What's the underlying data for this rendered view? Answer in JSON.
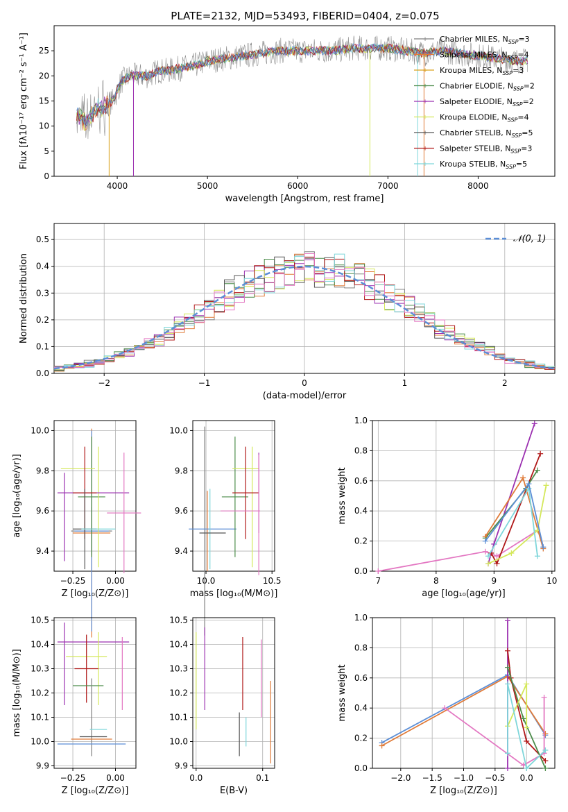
{
  "figure_title": "PLATE=2132, MJD=53493, FIBERID=0404, z=0.075",
  "colors": [
    "#7f7f7f",
    "#e07b39",
    "#d9a01a",
    "#4c8c4a",
    "#9b30b0",
    "#d4e85a",
    "#555555",
    "#b01818",
    "#7ed6da",
    "#e377c2",
    "#5b8ed6"
  ],
  "chart_data": [
    {
      "id": "spectrum",
      "type": "line",
      "xlabel": "wavelength [Angstrom, rest frame]",
      "ylabel": "Flux [fλ10⁻¹⁷ erg cm⁻² s⁻¹ A⁻¹]",
      "xlim": [
        3300,
        8850
      ],
      "ylim": [
        0,
        30
      ],
      "xticks": [
        4000,
        5000,
        6000,
        7000,
        8000
      ],
      "yticks": [
        0,
        5,
        10,
        15,
        20,
        25
      ],
      "x": [
        3550,
        3650,
        3750,
        3850,
        3950,
        4050,
        4150,
        4250,
        4350,
        4450,
        4550,
        4700,
        4850,
        5000,
        5200,
        5400,
        5600,
        5800,
        6000,
        6200,
        6400,
        6600,
        6800,
        7000,
        7200,
        7400,
        7600,
        7800,
        8000,
        8200,
        8400,
        8550
      ],
      "y": [
        12,
        11,
        13,
        14,
        15,
        19,
        20,
        20,
        20,
        21,
        21,
        21.5,
        22,
        23,
        23.5,
        24,
        24.5,
        25,
        25,
        25,
        25,
        25.5,
        25.5,
        25.5,
        25,
        24.5,
        25,
        24.5,
        24,
        23.5,
        23,
        23
      ],
      "legend": [
        {
          "label": "Chabrier MILES, N_SSP=3",
          "color": "#7f7f7f"
        },
        {
          "label": "Salpeter MILES, N_SSP=4",
          "color": "#e07b39"
        },
        {
          "label": "Kroupa MILES, N_SSP=3",
          "color": "#d9a01a"
        },
        {
          "label": "Chabrier ELODIE, N_SSP=2",
          "color": "#4c8c4a"
        },
        {
          "label": "Salpeter ELODIE, N_SSP=2",
          "color": "#9b30b0"
        },
        {
          "label": "Kroupa ELODIE, N_SSP=4",
          "color": "#d4e85a"
        },
        {
          "label": "Chabrier STELIB, N_SSP=5",
          "color": "#555555"
        },
        {
          "label": "Salpeter STELIB, N_SSP=3",
          "color": "#b01818"
        },
        {
          "label": "Kroupa STELIB, N_SSP=5",
          "color": "#7ed6da"
        }
      ]
    },
    {
      "id": "residuals",
      "type": "histogram",
      "xlabel": "(data-model)/error",
      "ylabel": "Normed distribution",
      "xlim": [
        -2.5,
        2.5
      ],
      "ylim": [
        0,
        0.56
      ],
      "xticks": [
        -2,
        -1,
        0,
        1,
        2
      ],
      "yticks": [
        0.0,
        0.1,
        0.2,
        0.3,
        0.4,
        0.5
      ],
      "bins": [
        -2.5,
        -2.4,
        -2.3,
        -2.2,
        -2.1,
        -2.0,
        -1.9,
        -1.8,
        -1.7,
        -1.6,
        -1.5,
        -1.4,
        -1.3,
        -1.2,
        -1.1,
        -1.0,
        -0.9,
        -0.8,
        -0.7,
        -0.6,
        -0.5,
        -0.4,
        -0.3,
        -0.2,
        -0.1,
        0.0,
        0.1,
        0.2,
        0.3,
        0.4,
        0.5,
        0.6,
        0.7,
        0.8,
        0.9,
        1.0,
        1.1,
        1.2,
        1.3,
        1.4,
        1.5,
        1.6,
        1.7,
        1.8,
        1.9,
        2.0,
        2.1,
        2.2,
        2.3,
        2.4,
        2.5
      ],
      "gauss_label": "N(0,1)",
      "ref_values": [
        0.018,
        0.022,
        0.028,
        0.035,
        0.044,
        0.054,
        0.066,
        0.079,
        0.094,
        0.111,
        0.13,
        0.15,
        0.171,
        0.194,
        0.218,
        0.242,
        0.266,
        0.29,
        0.312,
        0.333,
        0.352,
        0.368,
        0.381,
        0.391,
        0.397,
        0.399,
        0.397,
        0.391,
        0.381,
        0.368,
        0.352,
        0.333,
        0.312,
        0.29,
        0.266,
        0.242,
        0.218,
        0.194,
        0.171,
        0.15,
        0.13,
        0.111,
        0.094,
        0.079,
        0.066,
        0.054,
        0.044,
        0.035,
        0.028,
        0.022
      ]
    },
    {
      "id": "age_vs_Z",
      "type": "errorbar",
      "xlabel": "Z [log₁₀(Z/Z⊙)]",
      "ylabel": "age  [log₁₀(age/yr)]",
      "xlim": [
        -0.36,
        0.12
      ],
      "ylim": [
        9.3,
        10.05
      ],
      "xticks": [
        -0.25,
        0.0
      ],
      "xticklabels": [
        "−0.25",
        "0.00"
      ],
      "yticks": [
        9.4,
        9.6,
        9.8,
        10.0
      ],
      "points": [
        {
          "x": -0.14,
          "y": 9.5,
          "xerr": 0.12,
          "yerr": 0.12,
          "color": "#7f7f7f"
        },
        {
          "x": -0.14,
          "y": 9.49,
          "xerr": 0.11,
          "yerr": 0.52,
          "color": "#e07b39"
        },
        {
          "x": -0.14,
          "y": 9.5,
          "xerr": 0.1,
          "yerr": 0.5,
          "color": "#5b8ed6"
        },
        {
          "x": -0.14,
          "y": 9.67,
          "xerr": 0.08,
          "yerr": 0.3,
          "color": "#4c8c4a"
        },
        {
          "x": -0.3,
          "y": 9.57,
          "xerr": 0.0,
          "yerr": 0.22,
          "color": "#9b30b0"
        },
        {
          "x": -0.1,
          "y": 9.62,
          "xerr": 0.0,
          "yerr": 0.3,
          "color": "#d4e85a"
        },
        {
          "x": -0.22,
          "y": 9.81,
          "xerr": 0.1,
          "yerr": 0.0,
          "color": "#d4e85a"
        },
        {
          "x": -0.13,
          "y": 9.69,
          "xerr": 0.21,
          "yerr": 0.0,
          "color": "#9b30b0"
        },
        {
          "x": -0.18,
          "y": 9.69,
          "xerr": 0.07,
          "yerr": 0.23,
          "color": "#b01818"
        },
        {
          "x": -0.18,
          "y": 9.51,
          "xerr": 0.07,
          "yerr": 0.2,
          "color": "#555555"
        },
        {
          "x": -0.1,
          "y": 9.51,
          "xerr": 0.1,
          "yerr": 0.0,
          "color": "#7ed6da"
        },
        {
          "x": 0.05,
          "y": 9.59,
          "xerr": 0.1,
          "yerr": 0.3,
          "color": "#e377c2"
        }
      ]
    },
    {
      "id": "age_vs_mass",
      "type": "errorbar",
      "xlabel": "mass [log₁₀(M/M⊙)]",
      "ylabel": "",
      "xlim": [
        9.9,
        10.52
      ],
      "ylim": [
        9.3,
        10.05
      ],
      "xticks": [
        10.0,
        10.5
      ],
      "xticklabels": [
        "10.0",
        "10.5"
      ],
      "yticks": [
        9.4,
        9.6,
        9.8,
        10.0
      ],
      "points": [
        {
          "x": 9.99,
          "y": 9.5,
          "xerr": 0.0,
          "yerr": 0.52,
          "color": "#7f7f7f"
        },
        {
          "x": 10.01,
          "y": 9.5,
          "xerr": 0.0,
          "yerr": 0.2,
          "color": "#e07b39"
        },
        {
          "x": 10.05,
          "y": 9.51,
          "xerr": 0.18,
          "yerr": 0.0,
          "color": "#5b8ed6"
        },
        {
          "x": 10.22,
          "y": 9.67,
          "xerr": 0.1,
          "yerr": 0.3,
          "color": "#4c8c4a"
        },
        {
          "x": 10.3,
          "y": 9.81,
          "xerr": 0.1,
          "yerr": 0.0,
          "color": "#d4e85a"
        },
        {
          "x": 10.35,
          "y": 9.62,
          "xerr": 0.0,
          "yerr": 0.3,
          "color": "#d4e85a"
        },
        {
          "x": 10.3,
          "y": 9.69,
          "xerr": 0.1,
          "yerr": 0.23,
          "color": "#b01818"
        },
        {
          "x": 10.4,
          "y": 9.69,
          "xerr": 0.0,
          "yerr": 0.2,
          "color": "#9b30b0"
        },
        {
          "x": 10.26,
          "y": 9.6,
          "xerr": 0.15,
          "yerr": 0.0,
          "color": "#e377c2"
        },
        {
          "x": 10.03,
          "y": 9.51,
          "xerr": 0.0,
          "yerr": 0.2,
          "color": "#7ed6da"
        },
        {
          "x": 10.4,
          "y": 9.58,
          "xerr": 0.0,
          "yerr": 0.3,
          "color": "#e377c2"
        },
        {
          "x": 10.05,
          "y": 9.49,
          "xerr": 0.1,
          "yerr": 0.0,
          "color": "#555555"
        }
      ]
    },
    {
      "id": "weight_vs_age",
      "type": "line",
      "xlabel": "age  [log₁₀(age/yr)]",
      "ylabel": "mass weight",
      "xlim": [
        6.9,
        10.05
      ],
      "ylim": [
        0,
        1.0
      ],
      "xticks": [
        7,
        8,
        9,
        10
      ],
      "yticks": [
        0.0,
        0.2,
        0.4,
        0.6,
        0.8,
        1.0
      ],
      "series": [
        {
          "color": "#e377c2",
          "x": [
            7.0,
            8.85,
            9.05,
            9.75
          ],
          "y": [
            0.0,
            0.13,
            0.1,
            0.27
          ]
        },
        {
          "color": "#9b30b0",
          "x": [
            8.9,
            9.0,
            9.7
          ],
          "y": [
            0.05,
            0.18,
            0.98
          ]
        },
        {
          "color": "#b01818",
          "x": [
            8.95,
            9.05,
            9.8
          ],
          "y": [
            0.12,
            0.05,
            0.78
          ]
        },
        {
          "color": "#4c8c4a",
          "x": [
            8.85,
            9.55,
            9.75
          ],
          "y": [
            0.22,
            0.55,
            0.67
          ]
        },
        {
          "color": "#e07b39",
          "x": [
            8.85,
            9.5,
            9.85
          ],
          "y": [
            0.23,
            0.62,
            0.15
          ]
        },
        {
          "color": "#d4e85a",
          "x": [
            8.9,
            9.3,
            9.75,
            9.9
          ],
          "y": [
            0.05,
            0.12,
            0.27,
            0.57
          ]
        },
        {
          "color": "#7ed6da",
          "x": [
            8.9,
            9.6,
            9.75
          ],
          "y": [
            0.1,
            0.55,
            0.1
          ]
        },
        {
          "color": "#5b8ed6",
          "x": [
            8.85,
            9.6,
            9.85
          ],
          "y": [
            0.2,
            0.58,
            0.16
          ]
        }
      ]
    },
    {
      "id": "mass_vs_Z",
      "type": "errorbar",
      "xlabel": "Z [log₁₀(Z/Z⊙)]",
      "ylabel": "mass [log₁₀(M/M⊙)]",
      "xlim": [
        -0.36,
        0.12
      ],
      "ylim": [
        9.89,
        10.51
      ],
      "xticks": [
        -0.25,
        0.0
      ],
      "xticklabels": [
        "−0.25",
        "0.00"
      ],
      "yticks": [
        9.9,
        10.0,
        10.1,
        10.2,
        10.3,
        10.4,
        10.5
      ],
      "points": [
        {
          "x": -0.13,
          "y": 10.41,
          "xerr": 0.21,
          "yerr": 0.0,
          "color": "#9b30b0"
        },
        {
          "x": -0.3,
          "y": 10.32,
          "xerr": 0.0,
          "yerr": 0.17,
          "color": "#9b30b0"
        },
        {
          "x": -0.17,
          "y": 10.35,
          "xerr": 0.12,
          "yerr": 0.0,
          "color": "#d4e85a"
        },
        {
          "x": -0.1,
          "y": 10.3,
          "xerr": 0.0,
          "yerr": 0.15,
          "color": "#d4e85a"
        },
        {
          "x": -0.17,
          "y": 10.3,
          "xerr": 0.07,
          "yerr": 0.14,
          "color": "#b01818"
        },
        {
          "x": -0.16,
          "y": 10.23,
          "xerr": 0.09,
          "yerr": 0.0,
          "color": "#4c8c4a"
        },
        {
          "x": 0.04,
          "y": 10.28,
          "xerr": 0.0,
          "yerr": 0.15,
          "color": "#e377c2"
        },
        {
          "x": -0.14,
          "y": 10.1,
          "xerr": 0.0,
          "yerr": 0.16,
          "color": "#7f7f7f"
        },
        {
          "x": -0.1,
          "y": 10.05,
          "xerr": 0.05,
          "yerr": 0.0,
          "color": "#7ed6da"
        },
        {
          "x": -0.14,
          "y": 10.01,
          "xerr": 0.12,
          "yerr": 0.0,
          "color": "#e07b39"
        },
        {
          "x": -0.14,
          "y": 9.99,
          "xerr": 0.2,
          "yerr": 0.0,
          "color": "#5b8ed6"
        },
        {
          "x": -0.13,
          "y": 10.02,
          "xerr": 0.08,
          "yerr": 0.0,
          "color": "#555555"
        }
      ]
    },
    {
      "id": "mass_vs_ebv",
      "type": "errorbar",
      "xlabel": "E(B-V)",
      "ylabel": "",
      "xlim": [
        -0.005,
        0.118
      ],
      "ylim": [
        9.89,
        10.51
      ],
      "xticks": [
        0.0,
        0.1
      ],
      "xticklabels": [
        "0.0",
        "0.1"
      ],
      "yticks": [
        9.9,
        10.0,
        10.1,
        10.2,
        10.3,
        10.4,
        10.5
      ],
      "points": [
        {
          "x": 0.0,
          "y": 10.25,
          "xerr": 0.0,
          "yerr": 0.2,
          "color": "#d4e85a"
        },
        {
          "x": 0.013,
          "y": 10.3,
          "xerr": 0.0,
          "yerr": 0.17,
          "color": "#9b30b0"
        },
        {
          "x": 0.07,
          "y": 10.28,
          "xerr": 0.0,
          "yerr": 0.15,
          "color": "#b01818"
        },
        {
          "x": 0.065,
          "y": 10.03,
          "xerr": 0.0,
          "yerr": 0.09,
          "color": "#555555"
        },
        {
          "x": 0.075,
          "y": 10.04,
          "xerr": 0.0,
          "yerr": 0.06,
          "color": "#7ed6da"
        },
        {
          "x": 0.098,
          "y": 10.26,
          "xerr": 0.0,
          "yerr": 0.16,
          "color": "#e377c2"
        },
        {
          "x": 0.112,
          "y": 10.08,
          "xerr": 0.0,
          "yerr": 0.17,
          "color": "#e07b39"
        }
      ]
    },
    {
      "id": "weight_vs_Z",
      "type": "line",
      "xlabel": "Z [log₁₀(Z/Z⊙)]",
      "ylabel": "mass weight",
      "xlim": [
        -2.45,
        0.45
      ],
      "ylim": [
        0,
        1.0
      ],
      "xticks": [
        -2.0,
        -1.5,
        -1.0,
        -0.5,
        0.0
      ],
      "xticklabels": [
        "−2.0",
        "−1.5",
        "−1.0",
        "−0.5",
        "0.0"
      ],
      "yticks": [
        0.0,
        0.2,
        0.4,
        0.6,
        0.8,
        1.0
      ],
      "series": [
        {
          "color": "#5b8ed6",
          "x": [
            -2.3,
            -0.3,
            0.3
          ],
          "y": [
            0.17,
            0.62,
            0.22
          ]
        },
        {
          "color": "#e07b39",
          "x": [
            -2.3,
            -0.3,
            0.3
          ],
          "y": [
            0.15,
            0.61,
            0.23
          ]
        },
        {
          "color": "#e377c2",
          "x": [
            -1.3,
            -0.05,
            0.28,
            0.28
          ],
          "y": [
            0.4,
            0.02,
            0.1,
            0.47
          ]
        },
        {
          "color": "#9b30b0",
          "x": [
            -0.3,
            -0.3
          ],
          "y": [
            0.0,
            0.98
          ]
        },
        {
          "color": "#b01818",
          "x": [
            -0.3,
            -0.25,
            0.0,
            0.3
          ],
          "y": [
            0.78,
            0.6,
            0.18,
            0.05
          ]
        },
        {
          "color": "#4c8c4a",
          "x": [
            -0.3,
            -0.05,
            0.3
          ],
          "y": [
            0.67,
            0.33,
            0.0
          ]
        },
        {
          "color": "#d4e85a",
          "x": [
            -0.3,
            0.0,
            0.0
          ],
          "y": [
            0.28,
            0.56,
            0.27
          ]
        },
        {
          "color": "#7ed6da",
          "x": [
            -0.3,
            -0.3,
            0.0,
            0.3
          ],
          "y": [
            0.1,
            0.56,
            0.0,
            0.12
          ]
        }
      ]
    }
  ]
}
